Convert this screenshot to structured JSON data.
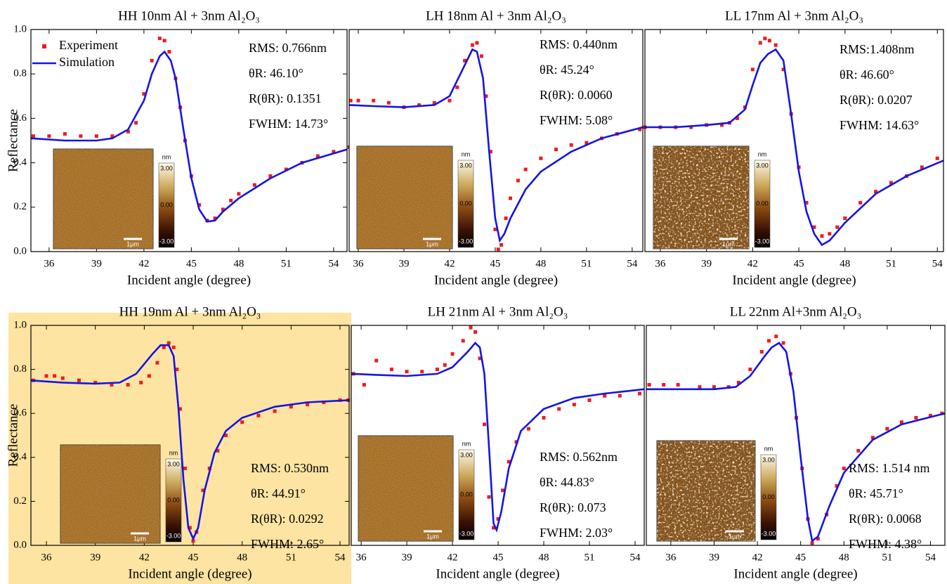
{
  "chart_data": [
    {
      "type": "line",
      "title": "HH 10nm Al + 3nm Al₂O₃",
      "xlabel": "Incident angle (degree)",
      "ylabel": "Reflectance",
      "xlim": [
        34.85,
        54.85
      ],
      "xticks": [
        36,
        39,
        42,
        45,
        48,
        51,
        54
      ],
      "ylim": [
        0,
        1
      ],
      "yticks": [
        {
          "value": 0,
          "label": "0.0"
        },
        {
          "value": 0.2,
          "label": "0.2"
        },
        {
          "value": 0.4,
          "label": "0.4"
        },
        {
          "value": 0.6,
          "label": "0.6"
        },
        {
          "value": 0.8,
          "label": "0.8"
        },
        {
          "value": 1,
          "label": "1.0"
        }
      ],
      "legend": "upper left",
      "series": [
        {
          "name": "Experiment",
          "mode": "markers",
          "color": "#ee1c1c",
          "x": [
            35,
            36,
            37,
            38,
            39,
            40,
            41,
            41.5,
            42,
            42.5,
            43,
            43.3,
            43.6,
            44,
            44.3,
            44.6,
            45,
            45.5,
            46,
            46.5,
            47,
            47.5,
            48,
            49,
            50,
            51,
            52,
            53,
            54,
            55
          ],
          "values": [
            0.52,
            0.52,
            0.53,
            0.52,
            0.52,
            0.52,
            0.54,
            0.58,
            0.71,
            0.86,
            0.96,
            0.95,
            0.9,
            0.78,
            0.65,
            0.5,
            0.34,
            0.21,
            0.14,
            0.15,
            0.19,
            0.23,
            0.26,
            0.3,
            0.34,
            0.37,
            0.4,
            0.43,
            0.45,
            0.47
          ]
        },
        {
          "name": "Simulation",
          "mode": "lines",
          "color": "#1414e6",
          "x": [
            34.85,
            37,
            39,
            40,
            41,
            42,
            42.5,
            43,
            43.3,
            43.7,
            44,
            44.5,
            45,
            45.5,
            46,
            46.5,
            47,
            48,
            50,
            52,
            54.85
          ],
          "values": [
            0.51,
            0.5,
            0.5,
            0.51,
            0.55,
            0.68,
            0.8,
            0.88,
            0.9,
            0.86,
            0.78,
            0.55,
            0.33,
            0.19,
            0.135,
            0.14,
            0.18,
            0.24,
            0.33,
            0.4,
            0.46
          ]
        }
      ],
      "annotations": [
        "RMS: 0.766nm",
        "θR: 46.10°",
        "R(θR): 0.1351",
        "FWHM: 14.73°"
      ],
      "inset": {
        "unit": "nm",
        "ticks": [
          "3.00",
          "0.00",
          "-3.00"
        ],
        "scale": "1μm"
      }
    },
    {
      "type": "line",
      "title": "LH 18nm Al + 3nm Al₂O₃",
      "xlabel": "Incident  angle (degree)",
      "xlim": [
        35.4,
        54.7
      ],
      "xticks": [
        36,
        39,
        42,
        45,
        48,
        51,
        54
      ],
      "ylim": [
        0,
        1
      ],
      "series": [
        {
          "mode": "markers",
          "color": "#ee1c1c",
          "x": [
            35.5,
            36,
            37,
            38,
            39,
            40,
            41,
            42,
            42.5,
            43,
            43.5,
            43.8,
            44.1,
            44.4,
            44.7,
            45,
            45.2,
            45.4,
            45.7,
            46,
            46.5,
            47,
            48,
            49,
            50,
            51,
            52,
            53,
            54.5
          ],
          "values": [
            0.68,
            0.68,
            0.68,
            0.67,
            0.65,
            0.66,
            0.67,
            0.68,
            0.74,
            0.86,
            0.93,
            0.94,
            0.88,
            0.7,
            0.45,
            0.1,
            0.01,
            0.03,
            0.15,
            0.24,
            0.32,
            0.37,
            0.42,
            0.46,
            0.48,
            0.49,
            0.51,
            0.53,
            0.55
          ]
        },
        {
          "mode": "lines",
          "color": "#1414e6",
          "x": [
            35.4,
            37,
            39,
            41,
            42,
            43,
            43.5,
            43.8,
            44.2,
            44.6,
            45,
            45.3,
            45.6,
            46,
            47,
            48,
            50,
            52,
            54.7
          ],
          "values": [
            0.66,
            0.655,
            0.65,
            0.66,
            0.7,
            0.84,
            0.91,
            0.9,
            0.78,
            0.45,
            0.15,
            0.05,
            0.08,
            0.15,
            0.28,
            0.36,
            0.45,
            0.51,
            0.56
          ]
        }
      ],
      "annotations": [
        "RMS: 0.440nm",
        "θR: 45.24°",
        "R(θR): 0.0060",
        "FWHM: 5.08°"
      ],
      "inset": {
        "unit": "nm",
        "ticks": [
          "3.00",
          "0.00",
          "-3.00"
        ],
        "scale": "1μm"
      }
    },
    {
      "type": "line",
      "title": "LL 17nm Al + 3nm Al₂O₃",
      "xlabel": "Incident angle (degree)",
      "xlim": [
        35,
        54.4
      ],
      "xticks": [
        36,
        39,
        42,
        45,
        48,
        51,
        54
      ],
      "ylim": [
        0,
        1
      ],
      "series": [
        {
          "mode": "markers",
          "color": "#ee1c1c",
          "x": [
            35,
            36,
            37,
            38,
            39,
            40,
            40.5,
            41,
            41.5,
            42,
            42.5,
            42.8,
            43.1,
            43.5,
            44,
            44.5,
            45,
            45.5,
            46,
            46.5,
            47,
            47.5,
            48,
            49,
            50,
            51,
            52,
            53,
            54
          ],
          "values": [
            0.56,
            0.56,
            0.56,
            0.56,
            0.57,
            0.57,
            0.58,
            0.6,
            0.65,
            0.82,
            0.94,
            0.96,
            0.95,
            0.93,
            0.82,
            0.62,
            0.38,
            0.22,
            0.11,
            0.07,
            0.08,
            0.11,
            0.15,
            0.22,
            0.27,
            0.31,
            0.34,
            0.38,
            0.42
          ]
        },
        {
          "mode": "lines",
          "color": "#1414e6",
          "x": [
            35,
            37,
            39,
            40.5,
            41.5,
            42,
            42.5,
            43,
            43.5,
            44,
            44.5,
            45,
            45.5,
            46,
            46.5,
            47,
            48,
            50,
            52,
            54.4
          ],
          "values": [
            0.56,
            0.56,
            0.57,
            0.58,
            0.64,
            0.75,
            0.85,
            0.89,
            0.91,
            0.86,
            0.62,
            0.36,
            0.18,
            0.08,
            0.03,
            0.05,
            0.13,
            0.26,
            0.34,
            0.41
          ]
        }
      ],
      "annotations": [
        "RMS:1.408nm",
        "θR: 46.60°",
        "R(θR): 0.0207",
        "FWHM: 14.63°"
      ],
      "inset": {
        "unit": "nm",
        "ticks": [
          "3.00",
          "0.00",
          "-3.00"
        ],
        "scale": "1μm"
      }
    },
    {
      "type": "line",
      "title": "HH 19nm Al + 3nm Al₂O₃",
      "xlabel": "Incident angle (degree)",
      "ylabel": "Reflectance",
      "background": "#fde4a2",
      "xlim": [
        35.05,
        54.56
      ],
      "xticks": [
        36,
        39,
        42,
        45,
        48,
        51,
        54
      ],
      "ylim": [
        0,
        1
      ],
      "yticks": [
        {
          "value": 0,
          "label": "0.0"
        },
        {
          "value": 0.2,
          "label": "0.2"
        },
        {
          "value": 0.4,
          "label": "0.4"
        },
        {
          "value": 0.6,
          "label": "0.6"
        },
        {
          "value": 0.8,
          "label": "0.8"
        },
        {
          "value": 1,
          "label": "1.0"
        }
      ],
      "series": [
        {
          "mode": "markers",
          "color": "#ee1c1c",
          "x": [
            35.2,
            36,
            36.5,
            37,
            38,
            39,
            40,
            41,
            41.8,
            42.3,
            42.8,
            43.2,
            43.5,
            43.8,
            44,
            44.2,
            44.5,
            44.8,
            45,
            45.2,
            45.6,
            46,
            46.5,
            47,
            48,
            49,
            50,
            51,
            52,
            53,
            54,
            54.5
          ],
          "values": [
            0.75,
            0.77,
            0.77,
            0.76,
            0.75,
            0.74,
            0.73,
            0.73,
            0.74,
            0.77,
            0.83,
            0.9,
            0.92,
            0.9,
            0.8,
            0.62,
            0.35,
            0.08,
            0.02,
            0.06,
            0.25,
            0.35,
            0.43,
            0.5,
            0.56,
            0.59,
            0.61,
            0.63,
            0.64,
            0.65,
            0.66,
            0.66
          ]
        },
        {
          "mode": "lines",
          "color": "#1414e6",
          "x": [
            35.05,
            37,
            39,
            40.5,
            41.5,
            42.5,
            43,
            43.5,
            43.8,
            44.1,
            44.4,
            44.7,
            45,
            45.3,
            45.7,
            46.3,
            47,
            48,
            50,
            52,
            54.56
          ],
          "values": [
            0.75,
            0.74,
            0.735,
            0.74,
            0.78,
            0.87,
            0.91,
            0.91,
            0.86,
            0.62,
            0.3,
            0.08,
            0.03,
            0.08,
            0.25,
            0.42,
            0.52,
            0.58,
            0.63,
            0.65,
            0.66
          ]
        }
      ],
      "annotations": [
        "RMS: 0.530nm",
        "θR: 44.91°",
        "R(θR): 0.0292",
        "FWHM: 2.65°"
      ],
      "inset": {
        "unit": "nm",
        "ticks": [
          "3.00",
          "0.00",
          "-3.00"
        ],
        "scale": "1μm"
      }
    },
    {
      "type": "line",
      "title": "LH 21nm Al + 3nm Al₂O₃",
      "xlabel": "Incident  angle (degree)",
      "xlim": [
        35.35,
        54.6
      ],
      "xticks": [
        36,
        39,
        42,
        45,
        48,
        51,
        54
      ],
      "ylim": [
        0,
        1
      ],
      "series": [
        {
          "mode": "markers",
          "color": "#ee1c1c",
          "x": [
            35.5,
            36.2,
            37,
            38,
            39,
            40,
            41,
            41.5,
            42,
            42.7,
            43.2,
            43.5,
            43.8,
            44.1,
            44.4,
            44.7,
            45,
            45.3,
            45.7,
            46.2,
            47,
            48,
            49,
            50,
            51,
            52,
            53,
            54.3
          ],
          "values": [
            0.78,
            0.73,
            0.84,
            0.8,
            0.79,
            0.79,
            0.8,
            0.82,
            0.87,
            0.93,
            0.99,
            0.97,
            0.85,
            0.55,
            0.22,
            0.08,
            0.12,
            0.25,
            0.38,
            0.47,
            0.53,
            0.58,
            0.62,
            0.64,
            0.66,
            0.68,
            0.68,
            0.69
          ]
        },
        {
          "mode": "lines",
          "color": "#1414e6",
          "x": [
            35.35,
            37,
            39,
            41,
            42,
            43,
            43.5,
            43.8,
            44.1,
            44.4,
            44.7,
            44.9,
            45.2,
            45.7,
            46.5,
            48,
            50,
            52,
            54.6
          ],
          "values": [
            0.78,
            0.775,
            0.77,
            0.78,
            0.81,
            0.88,
            0.92,
            0.9,
            0.78,
            0.45,
            0.1,
            0.07,
            0.15,
            0.35,
            0.52,
            0.62,
            0.67,
            0.69,
            0.71
          ]
        }
      ],
      "annotations": [
        "RMS: 0.562nm",
        "θR: 44.83°",
        "R(θR): 0.073",
        "FWHM: 2.03°"
      ],
      "inset": {
        "unit": "nm",
        "ticks": [
          "3.00",
          "0.00",
          "-3.00"
        ],
        "scale": "1μm"
      }
    },
    {
      "type": "line",
      "title": "LL 22nm Al+3nm Al₂O₃",
      "xlabel": "Incident  angle (degree)",
      "xlim": [
        34.3,
        55
      ],
      "xticks": [
        36,
        39,
        42,
        45,
        48,
        51,
        54
      ],
      "ylim": [
        0,
        1
      ],
      "series": [
        {
          "mode": "markers",
          "color": "#ee1c1c",
          "x": [
            34.5,
            35.5,
            36.5,
            38,
            39,
            40,
            40.7,
            41.5,
            42.3,
            42.8,
            43.3,
            43.8,
            44.3,
            44.7,
            45.1,
            45.5,
            45.8,
            46.2,
            46.8,
            47.5,
            48,
            49,
            50,
            51,
            52,
            53,
            54,
            54.8
          ],
          "values": [
            0.73,
            0.73,
            0.73,
            0.72,
            0.72,
            0.72,
            0.74,
            0.8,
            0.88,
            0.93,
            0.95,
            0.92,
            0.78,
            0.58,
            0.35,
            0.12,
            0.01,
            0.03,
            0.14,
            0.27,
            0.35,
            0.43,
            0.49,
            0.53,
            0.56,
            0.58,
            0.59,
            0.6
          ]
        },
        {
          "mode": "lines",
          "color": "#1414e6",
          "x": [
            34.3,
            37,
            39,
            40.5,
            41.5,
            42.5,
            43,
            43.5,
            44,
            44.5,
            45,
            45.5,
            45.8,
            46.2,
            47,
            48,
            50,
            52,
            55
          ],
          "values": [
            0.71,
            0.71,
            0.71,
            0.72,
            0.77,
            0.86,
            0.9,
            0.92,
            0.88,
            0.7,
            0.4,
            0.12,
            0.02,
            0.04,
            0.18,
            0.33,
            0.48,
            0.55,
            0.6
          ]
        }
      ],
      "annotations": [
        "RMS: 1.514 nm",
        "θR: 45.71°",
        "R(θR): 0.0068",
        "FWHM: 4.38°"
      ],
      "inset": {
        "unit": "nm",
        "ticks": [
          "3.00",
          "0.00",
          "-3.00"
        ],
        "scale": "1μm"
      }
    }
  ]
}
